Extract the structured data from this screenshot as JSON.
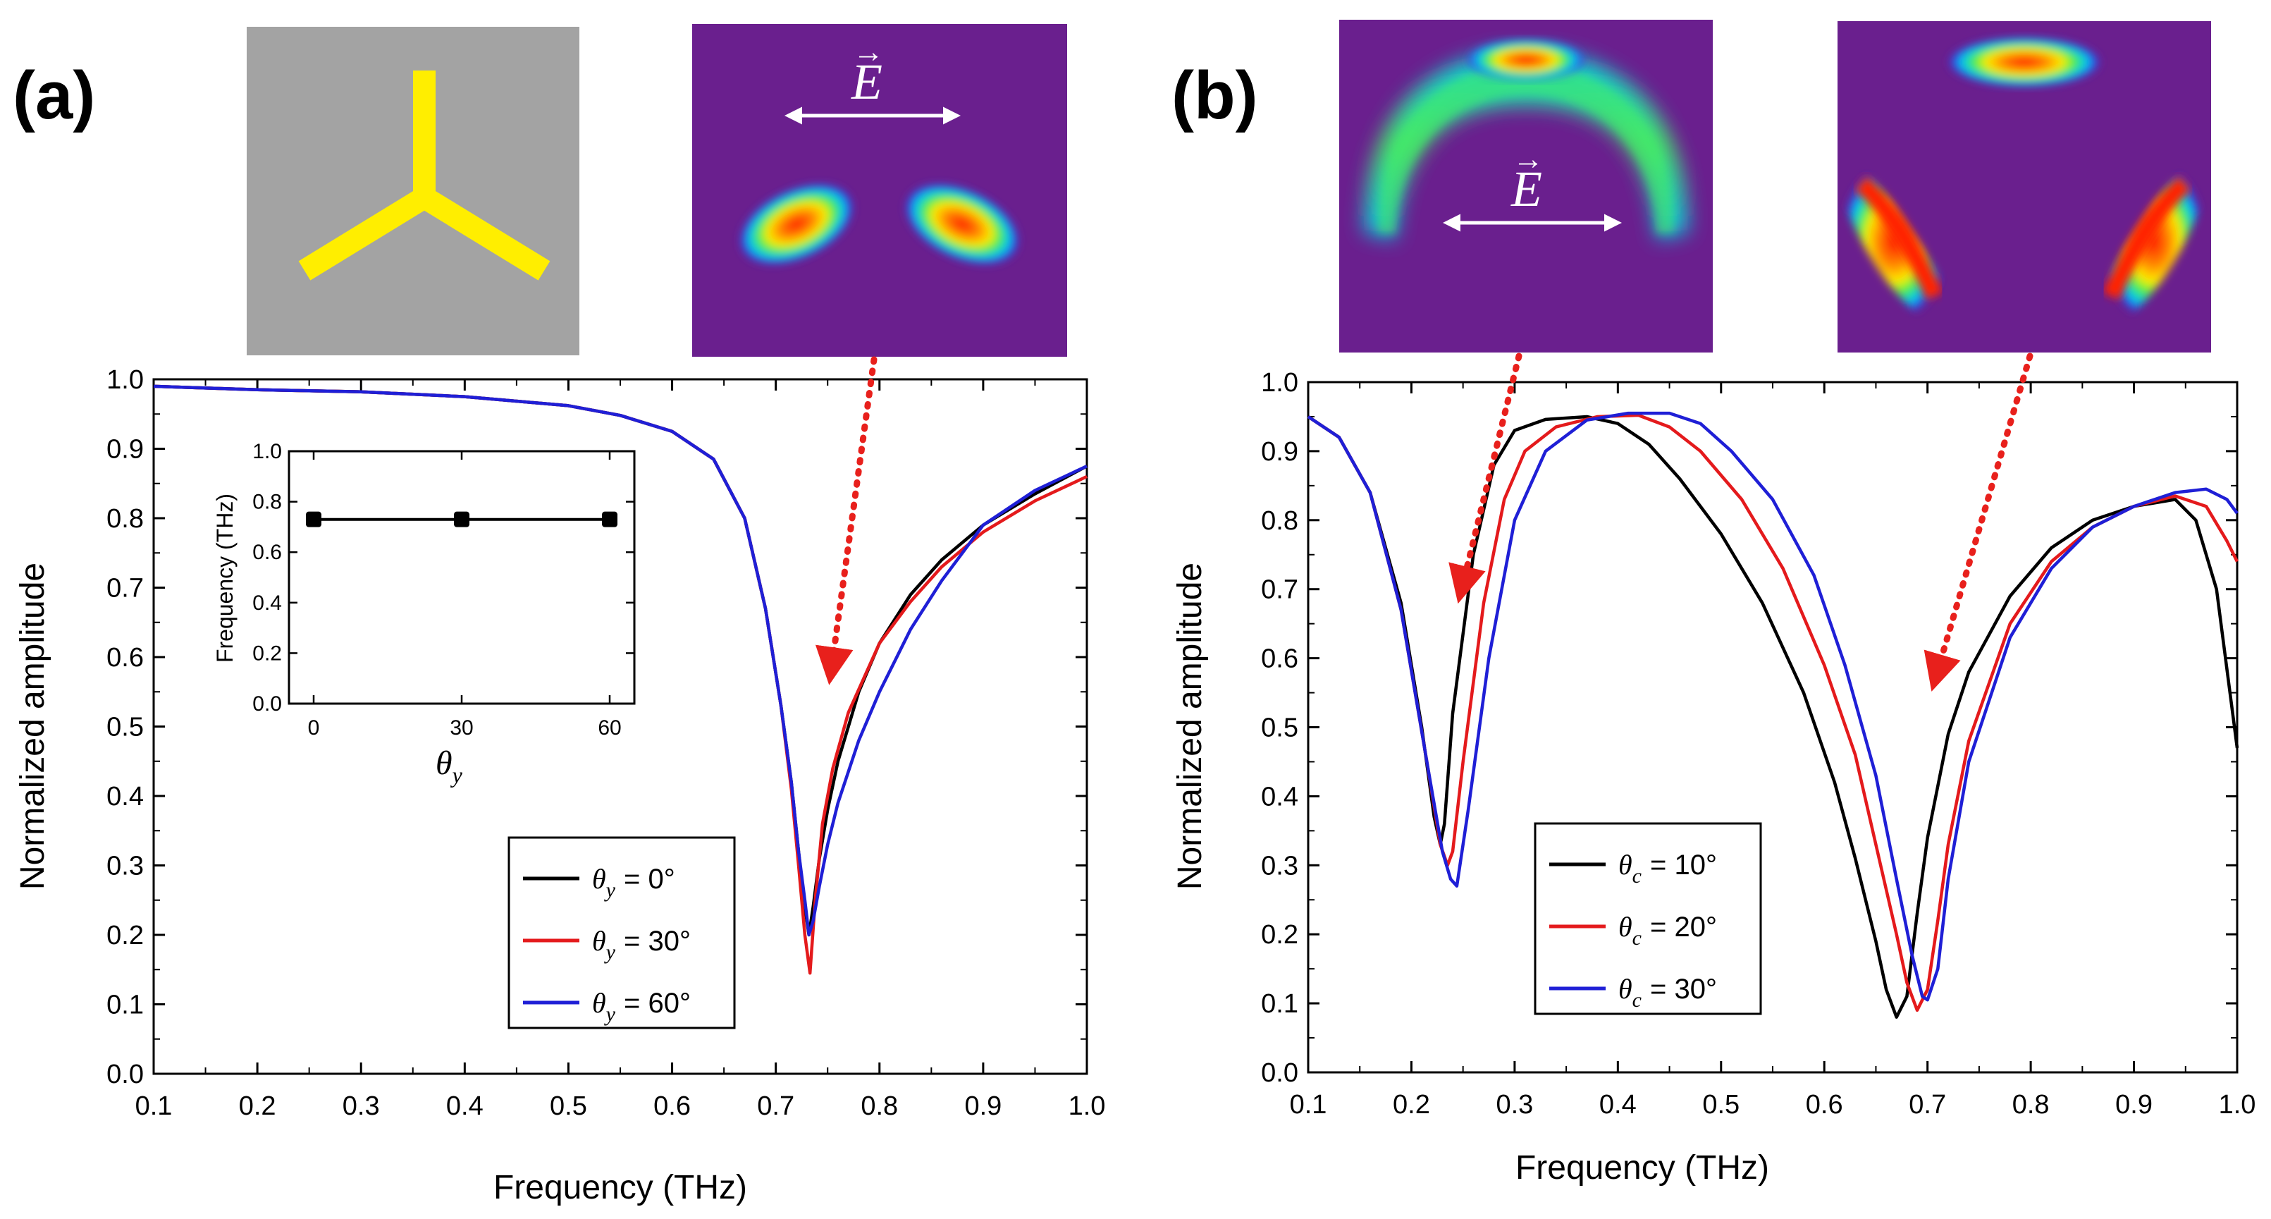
{
  "colors": {
    "black": "#000000",
    "red": "#e41a1c",
    "blue": "#1f1fd6",
    "arrow": "#e8201c",
    "gray_bg": "#a3a3a3",
    "yellow": "#ffee00",
    "field_bg": "#6a1f8e"
  },
  "panels": {
    "a": {
      "letter": "(a)"
    },
    "b": {
      "letter": "(b)"
    }
  },
  "field_maps": {
    "a_field": {
      "label": "E",
      "vector_mark": "→"
    },
    "b_field_1": {
      "label": "E",
      "vector_mark": "→"
    }
  },
  "chart_data": [
    {
      "id": "a",
      "type": "line",
      "xlabel": "Frequency (THz)",
      "ylabel": "Normalized amplitude",
      "xlim": [
        0.1,
        1.0
      ],
      "ylim": [
        0.0,
        1.0
      ],
      "xticks": [
        "0.1",
        "0.2",
        "0.3",
        "0.4",
        "0.5",
        "0.6",
        "0.7",
        "0.8",
        "0.9",
        "1.0"
      ],
      "yticks": [
        "0.0",
        "0.1",
        "0.2",
        "0.3",
        "0.4",
        "0.5",
        "0.6",
        "0.7",
        "0.8",
        "0.9",
        "1.0"
      ],
      "legend_position": "lower-right",
      "series": [
        {
          "name": "θy = 0°",
          "symbol": "θ",
          "sub": "y",
          "value": "= 0°",
          "color": "#000000",
          "x": [
            0.1,
            0.2,
            0.3,
            0.4,
            0.5,
            0.55,
            0.6,
            0.64,
            0.67,
            0.69,
            0.705,
            0.715,
            0.722,
            0.728,
            0.732,
            0.736,
            0.742,
            0.75,
            0.76,
            0.78,
            0.8,
            0.83,
            0.86,
            0.9,
            0.95,
            1.0
          ],
          "y": [
            0.99,
            0.985,
            0.982,
            0.975,
            0.962,
            0.948,
            0.925,
            0.885,
            0.8,
            0.67,
            0.53,
            0.42,
            0.32,
            0.24,
            0.2,
            0.24,
            0.31,
            0.38,
            0.45,
            0.55,
            0.62,
            0.69,
            0.74,
            0.79,
            0.835,
            0.875
          ]
        },
        {
          "name": "θy = 30°",
          "symbol": "θ",
          "sub": "y",
          "value": "= 30°",
          "color": "#e41a1c",
          "x": [
            0.1,
            0.2,
            0.3,
            0.4,
            0.5,
            0.55,
            0.6,
            0.64,
            0.67,
            0.69,
            0.705,
            0.715,
            0.722,
            0.728,
            0.733,
            0.738,
            0.745,
            0.755,
            0.77,
            0.8,
            0.83,
            0.86,
            0.9,
            0.95,
            1.0
          ],
          "y": [
            0.99,
            0.985,
            0.982,
            0.975,
            0.962,
            0.948,
            0.925,
            0.885,
            0.8,
            0.67,
            0.53,
            0.41,
            0.3,
            0.2,
            0.145,
            0.25,
            0.36,
            0.44,
            0.52,
            0.62,
            0.68,
            0.73,
            0.78,
            0.825,
            0.86
          ]
        },
        {
          "name": "θy = 60°",
          "symbol": "θ",
          "sub": "y",
          "value": "= 60°",
          "color": "#1f1fd6",
          "x": [
            0.1,
            0.2,
            0.3,
            0.4,
            0.5,
            0.55,
            0.6,
            0.64,
            0.67,
            0.69,
            0.705,
            0.715,
            0.722,
            0.728,
            0.732,
            0.736,
            0.742,
            0.75,
            0.76,
            0.78,
            0.8,
            0.83,
            0.86,
            0.9,
            0.95,
            1.0
          ],
          "y": [
            0.99,
            0.985,
            0.982,
            0.975,
            0.962,
            0.948,
            0.925,
            0.885,
            0.8,
            0.67,
            0.53,
            0.42,
            0.32,
            0.25,
            0.2,
            0.22,
            0.27,
            0.33,
            0.39,
            0.48,
            0.55,
            0.64,
            0.71,
            0.79,
            0.84,
            0.875
          ]
        }
      ],
      "inset": {
        "type": "line",
        "xlabel": "θ",
        "xlabel_sub": "y",
        "ylabel": "Frequency (THz)",
        "xlim": [
          -5,
          65
        ],
        "ylim": [
          0.0,
          1.0
        ],
        "xticks": [
          "0",
          "30",
          "60"
        ],
        "yticks": [
          "0.0",
          "0.2",
          "0.4",
          "0.6",
          "0.8",
          "1.0"
        ],
        "x": [
          0,
          30,
          60
        ],
        "y": [
          0.73,
          0.73,
          0.73
        ]
      }
    },
    {
      "id": "b",
      "type": "line",
      "xlabel": "Frequency (THz)",
      "ylabel": "Normalized amplitude",
      "xlim": [
        0.1,
        1.0
      ],
      "ylim": [
        0.0,
        1.0
      ],
      "xticks": [
        "0.1",
        "0.2",
        "0.3",
        "0.4",
        "0.5",
        "0.6",
        "0.7",
        "0.8",
        "0.9",
        "1.0"
      ],
      "yticks": [
        "0.0",
        "0.1",
        "0.2",
        "0.3",
        "0.4",
        "0.5",
        "0.6",
        "0.7",
        "0.8",
        "0.9",
        "1.0"
      ],
      "legend_position": "lower-center",
      "series": [
        {
          "name": "θc = 10°",
          "symbol": "θ",
          "sub": "c",
          "value": "= 10°",
          "color": "#000000",
          "x": [
            0.1,
            0.13,
            0.16,
            0.19,
            0.21,
            0.222,
            0.228,
            0.232,
            0.24,
            0.26,
            0.28,
            0.3,
            0.33,
            0.37,
            0.4,
            0.43,
            0.46,
            0.5,
            0.54,
            0.58,
            0.61,
            0.63,
            0.65,
            0.66,
            0.67,
            0.68,
            0.69,
            0.7,
            0.72,
            0.74,
            0.78,
            0.82,
            0.86,
            0.9,
            0.94,
            0.96,
            0.98,
            1.0
          ],
          "y": [
            0.95,
            0.92,
            0.84,
            0.68,
            0.5,
            0.37,
            0.33,
            0.36,
            0.52,
            0.75,
            0.88,
            0.93,
            0.946,
            0.95,
            0.94,
            0.91,
            0.86,
            0.78,
            0.68,
            0.55,
            0.42,
            0.31,
            0.19,
            0.12,
            0.08,
            0.11,
            0.23,
            0.34,
            0.49,
            0.58,
            0.69,
            0.76,
            0.8,
            0.82,
            0.83,
            0.8,
            0.7,
            0.47
          ]
        },
        {
          "name": "θc = 20°",
          "symbol": "θ",
          "sub": "c",
          "value": "= 20°",
          "color": "#e41a1c",
          "x": [
            0.1,
            0.13,
            0.16,
            0.19,
            0.215,
            0.228,
            0.235,
            0.24,
            0.25,
            0.27,
            0.29,
            0.31,
            0.34,
            0.38,
            0.42,
            0.45,
            0.48,
            0.52,
            0.56,
            0.6,
            0.63,
            0.65,
            0.67,
            0.68,
            0.69,
            0.7,
            0.71,
            0.72,
            0.74,
            0.78,
            0.82,
            0.86,
            0.9,
            0.94,
            0.97,
            0.99,
            1.0
          ],
          "y": [
            0.95,
            0.92,
            0.84,
            0.67,
            0.45,
            0.33,
            0.3,
            0.32,
            0.45,
            0.68,
            0.83,
            0.9,
            0.935,
            0.95,
            0.952,
            0.935,
            0.9,
            0.83,
            0.73,
            0.59,
            0.46,
            0.33,
            0.2,
            0.13,
            0.09,
            0.12,
            0.22,
            0.33,
            0.48,
            0.65,
            0.74,
            0.79,
            0.82,
            0.835,
            0.82,
            0.77,
            0.74
          ]
        },
        {
          "name": "θc = 30°",
          "symbol": "θ",
          "sub": "c",
          "value": "= 30°",
          "color": "#1f1fd6",
          "x": [
            0.1,
            0.13,
            0.16,
            0.19,
            0.215,
            0.23,
            0.238,
            0.244,
            0.255,
            0.275,
            0.3,
            0.33,
            0.37,
            0.41,
            0.45,
            0.48,
            0.51,
            0.55,
            0.59,
            0.62,
            0.65,
            0.67,
            0.685,
            0.695,
            0.7,
            0.71,
            0.72,
            0.74,
            0.78,
            0.82,
            0.86,
            0.9,
            0.94,
            0.97,
            0.99,
            1.0
          ],
          "y": [
            0.95,
            0.92,
            0.84,
            0.67,
            0.45,
            0.32,
            0.28,
            0.27,
            0.38,
            0.6,
            0.8,
            0.9,
            0.945,
            0.955,
            0.955,
            0.94,
            0.9,
            0.83,
            0.72,
            0.59,
            0.43,
            0.28,
            0.17,
            0.11,
            0.105,
            0.15,
            0.28,
            0.45,
            0.63,
            0.73,
            0.79,
            0.82,
            0.84,
            0.845,
            0.83,
            0.81
          ]
        }
      ]
    }
  ]
}
